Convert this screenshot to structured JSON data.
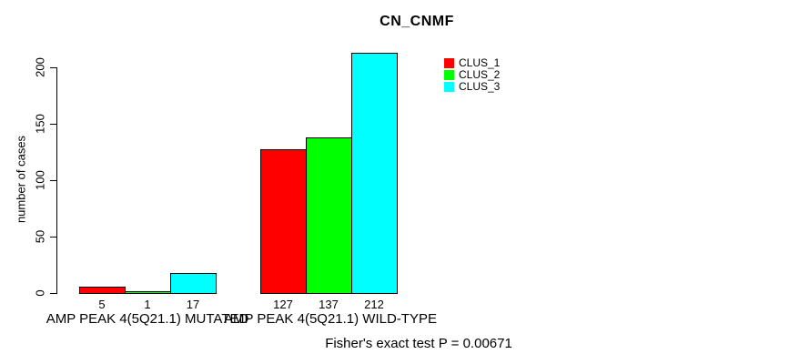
{
  "chart_data": {
    "type": "bar",
    "title": "CN_CNMF",
    "ylabel": "number of cases",
    "xlabel": "",
    "categories": [
      "AMP PEAK 4(5Q21.1) MUTATED",
      "AMP PEAK 4(5Q21.1) WILD-TYPE"
    ],
    "series": [
      {
        "name": "CLUS_1",
        "color": "#FF0000",
        "values": [
          5,
          127
        ]
      },
      {
        "name": "CLUS_2",
        "color": "#00FF00",
        "values": [
          1,
          137
        ]
      },
      {
        "name": "CLUS_3",
        "color": "#00FFFF",
        "values": [
          17,
          212
        ]
      }
    ],
    "bar_value_labels": [
      [
        "5",
        "1",
        "17"
      ],
      [
        "127",
        "137",
        "212"
      ]
    ],
    "yticks": [
      0,
      50,
      100,
      150,
      200
    ],
    "ylim": [
      0,
      212
    ],
    "grid": false,
    "legend_position": "top-right",
    "annotation": "Fisher's exact test P = 0.00671",
    "background_color": "#FFFFFF",
    "axis_color": "#000000"
  }
}
